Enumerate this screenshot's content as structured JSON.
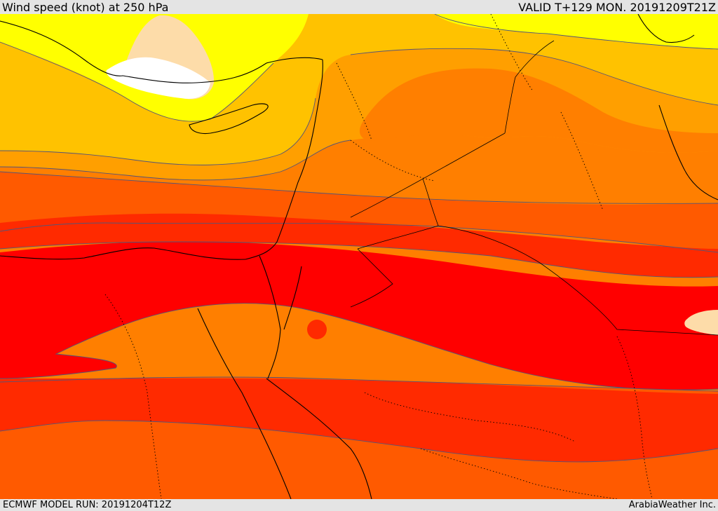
{
  "header": {
    "title": "Wind speed (knot) at 250 hPa",
    "valid": "VALID T+129 MON. 20191209T21Z"
  },
  "footer": {
    "model_run": "ECMWF MODEL RUN: 20191204T12Z",
    "credit": "ArabiaWeather Inc."
  },
  "colors": {
    "band_1": "#ffffff",
    "band_2": "#fddca9",
    "band_3": "#ffff00",
    "band_4": "#ffc200",
    "band_5": "#ff9f00",
    "band_6": "#ff7f00",
    "band_7": "#ff5a00",
    "band_8": "#ff2a00",
    "band_9": "#ff0000",
    "contour": "#555577",
    "coastline": "#000000"
  }
}
